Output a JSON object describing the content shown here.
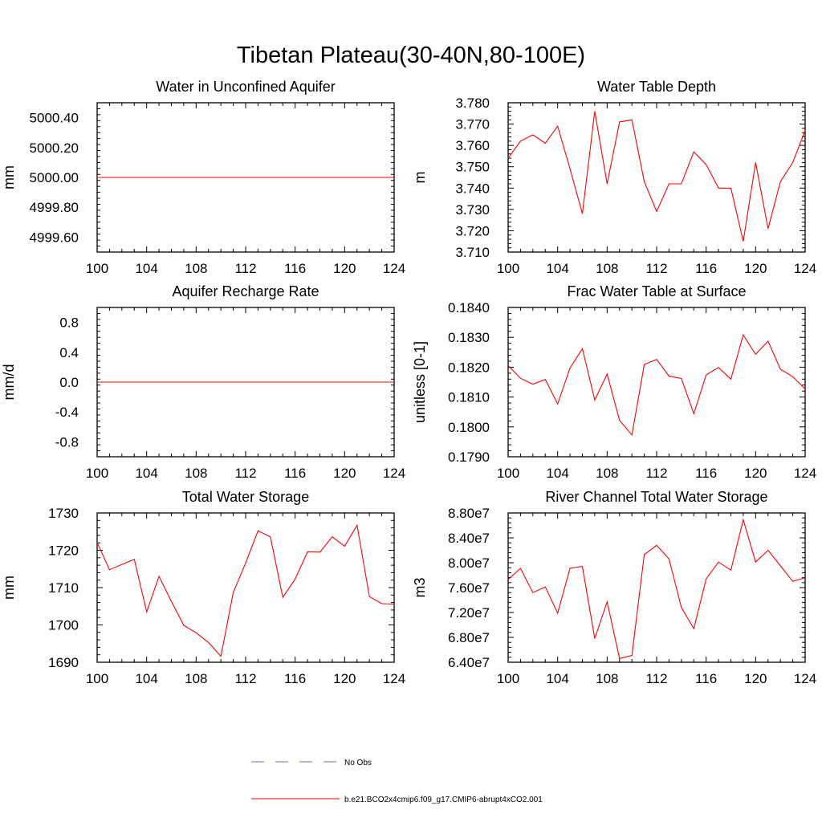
{
  "figure": {
    "title": "Tibetan Plateau(30-40N,80-100E)"
  },
  "legend": [
    {
      "label": "No Obs",
      "color": "#6b6bb8",
      "dash": "dashed"
    },
    {
      "label": "b.e21.BCO2x4cmip6.f09_g17.CMIP6-abrupt4xCO2.001",
      "color": "#ff0000",
      "dash": "solid"
    }
  ],
  "chart_data": [
    {
      "type": "line",
      "title": "Water in Unconfined Aquifer",
      "ylabel": "mm",
      "xlim": [
        100,
        124
      ],
      "ylim": [
        4999.5,
        5000.5
      ],
      "xticks": [
        100,
        104,
        108,
        112,
        116,
        120,
        124
      ],
      "yticks": [
        4999.6,
        4999.8,
        5000.0,
        5000.2,
        5000.4
      ],
      "ytick_labels": [
        "4999.60",
        "4999.80",
        "5000.00",
        "5000.20",
        "5000.40"
      ],
      "series": [
        {
          "color": "#ff0000",
          "x": [
            100,
            101,
            102,
            103,
            104,
            105,
            106,
            107,
            108,
            109,
            110,
            111,
            112,
            113,
            114,
            115,
            116,
            117,
            118,
            119,
            120,
            121,
            122,
            123,
            124
          ],
          "y": [
            5000,
            5000,
            5000,
            5000,
            5000,
            5000,
            5000,
            5000,
            5000,
            5000,
            5000,
            5000,
            5000,
            5000,
            5000,
            5000,
            5000,
            5000,
            5000,
            5000,
            5000,
            5000,
            5000,
            5000,
            5000
          ]
        }
      ]
    },
    {
      "type": "line",
      "title": "Water Table Depth",
      "ylabel": "m",
      "xlim": [
        100,
        124
      ],
      "ylim": [
        3.71,
        3.78
      ],
      "xticks": [
        100,
        104,
        108,
        112,
        116,
        120,
        124
      ],
      "yticks": [
        3.71,
        3.72,
        3.73,
        3.74,
        3.75,
        3.76,
        3.77,
        3.78
      ],
      "ytick_labels": [
        "3.710",
        "3.720",
        "3.730",
        "3.740",
        "3.750",
        "3.760",
        "3.770",
        "3.780"
      ],
      "series": [
        {
          "color": "#ff0000",
          "x": [
            100,
            101,
            102,
            103,
            104,
            105,
            106,
            107,
            108,
            109,
            110,
            111,
            112,
            113,
            114,
            115,
            116,
            117,
            118,
            119,
            120,
            121,
            122,
            123,
            124
          ],
          "y": [
            3.754,
            3.762,
            3.765,
            3.761,
            3.769,
            3.749,
            3.728,
            3.776,
            3.742,
            3.771,
            3.772,
            3.743,
            3.729,
            3.742,
            3.742,
            3.757,
            3.751,
            3.74,
            3.74,
            3.715,
            3.752,
            3.721,
            3.743,
            3.752,
            3.767
          ]
        }
      ]
    },
    {
      "type": "line",
      "title": "Aquifer Recharge Rate",
      "ylabel": "mm/d",
      "xlim": [
        100,
        124
      ],
      "ylim": [
        -1.0,
        1.0
      ],
      "xticks": [
        100,
        104,
        108,
        112,
        116,
        120,
        124
      ],
      "yticks": [
        -0.8,
        -0.4,
        0.0,
        0.4,
        0.8
      ],
      "ytick_labels": [
        "-0.8",
        "-0.4",
        "0.0",
        "0.4",
        "0.8"
      ],
      "series": [
        {
          "color": "#ff0000",
          "x": [
            100,
            101,
            102,
            103,
            104,
            105,
            106,
            107,
            108,
            109,
            110,
            111,
            112,
            113,
            114,
            115,
            116,
            117,
            118,
            119,
            120,
            121,
            122,
            123,
            124
          ],
          "y": [
            0,
            0,
            0,
            0,
            0,
            0,
            0,
            0,
            0,
            0,
            0,
            0,
            0,
            0,
            0,
            0,
            0,
            0,
            0,
            0,
            0,
            0,
            0,
            0,
            0
          ]
        }
      ]
    },
    {
      "type": "line",
      "title": "Frac Water Table at Surface",
      "ylabel": "unitless [0-1]",
      "xlim": [
        100,
        124
      ],
      "ylim": [
        0.179,
        0.184
      ],
      "xticks": [
        100,
        104,
        108,
        112,
        116,
        120,
        124
      ],
      "yticks": [
        0.179,
        0.18,
        0.181,
        0.182,
        0.183,
        0.184
      ],
      "ytick_labels": [
        "0.1790",
        "0.1800",
        "0.1810",
        "0.1820",
        "0.1830",
        "0.1840"
      ],
      "series": [
        {
          "color": "#ff0000",
          "x": [
            100,
            101,
            102,
            103,
            104,
            105,
            106,
            107,
            108,
            109,
            110,
            111,
            112,
            113,
            114,
            115,
            116,
            117,
            118,
            119,
            120,
            121,
            122,
            123,
            124
          ],
          "y": [
            0.18205,
            0.18163,
            0.18143,
            0.18159,
            0.18077,
            0.18197,
            0.18262,
            0.1809,
            0.18177,
            0.18022,
            0.17973,
            0.18209,
            0.18226,
            0.1817,
            0.18162,
            0.18044,
            0.18174,
            0.18199,
            0.1816,
            0.18308,
            0.18243,
            0.18287,
            0.18193,
            0.18168,
            0.18127
          ]
        }
      ]
    },
    {
      "type": "line",
      "title": "Total Water Storage",
      "ylabel": "mm",
      "xlim": [
        100,
        124
      ],
      "ylim": [
        1690,
        1730
      ],
      "xticks": [
        100,
        104,
        108,
        112,
        116,
        120,
        124
      ],
      "yticks": [
        1690,
        1700,
        1710,
        1720,
        1730
      ],
      "ytick_labels": [
        "1690",
        "1700",
        "1710",
        "1720",
        "1730"
      ],
      "series": [
        {
          "color": "#ff0000",
          "x": [
            100,
            101,
            102,
            103,
            104,
            105,
            106,
            107,
            108,
            109,
            110,
            111,
            112,
            113,
            114,
            115,
            116,
            117,
            118,
            119,
            120,
            121,
            122,
            123,
            124
          ],
          "y": [
            1722.1,
            1714.8,
            1716.2,
            1717.6,
            1703.5,
            1713.0,
            1706.3,
            1699.9,
            1697.9,
            1695.3,
            1691.6,
            1708.7,
            1716.6,
            1725.2,
            1723.6,
            1707.4,
            1712.3,
            1719.6,
            1719.5,
            1723.6,
            1721.1,
            1726.7,
            1707.6,
            1705.7,
            1705.6
          ]
        }
      ]
    },
    {
      "type": "line",
      "title": "River Channel Total Water Storage",
      "ylabel": "m3",
      "xlim": [
        100,
        124
      ],
      "ylim": [
        64000000,
        88000000
      ],
      "xticks": [
        100,
        104,
        108,
        112,
        116,
        120,
        124
      ],
      "yticks": [
        64000000,
        68000000,
        72000000,
        76000000,
        80000000,
        84000000,
        88000000
      ],
      "ytick_labels": [
        "6.40e7",
        "6.80e7",
        "7.20e7",
        "7.60e7",
        "8.00e7",
        "8.40e7",
        "8.80e7"
      ],
      "series": [
        {
          "color": "#ff0000",
          "x": [
            100,
            101,
            102,
            103,
            104,
            105,
            106,
            107,
            108,
            109,
            110,
            111,
            112,
            113,
            114,
            115,
            116,
            117,
            118,
            119,
            120,
            121,
            122,
            123,
            124
          ],
          "y": [
            77300000,
            79100000,
            75200000,
            76100000,
            71900000,
            79100000,
            79400000,
            67800000,
            73700000,
            64600000,
            65100000,
            81300000,
            82800000,
            80600000,
            72800000,
            69400000,
            77400000,
            80100000,
            78800000,
            86900000,
            80100000,
            82000000,
            79500000,
            77000000,
            77600000
          ]
        }
      ]
    }
  ]
}
